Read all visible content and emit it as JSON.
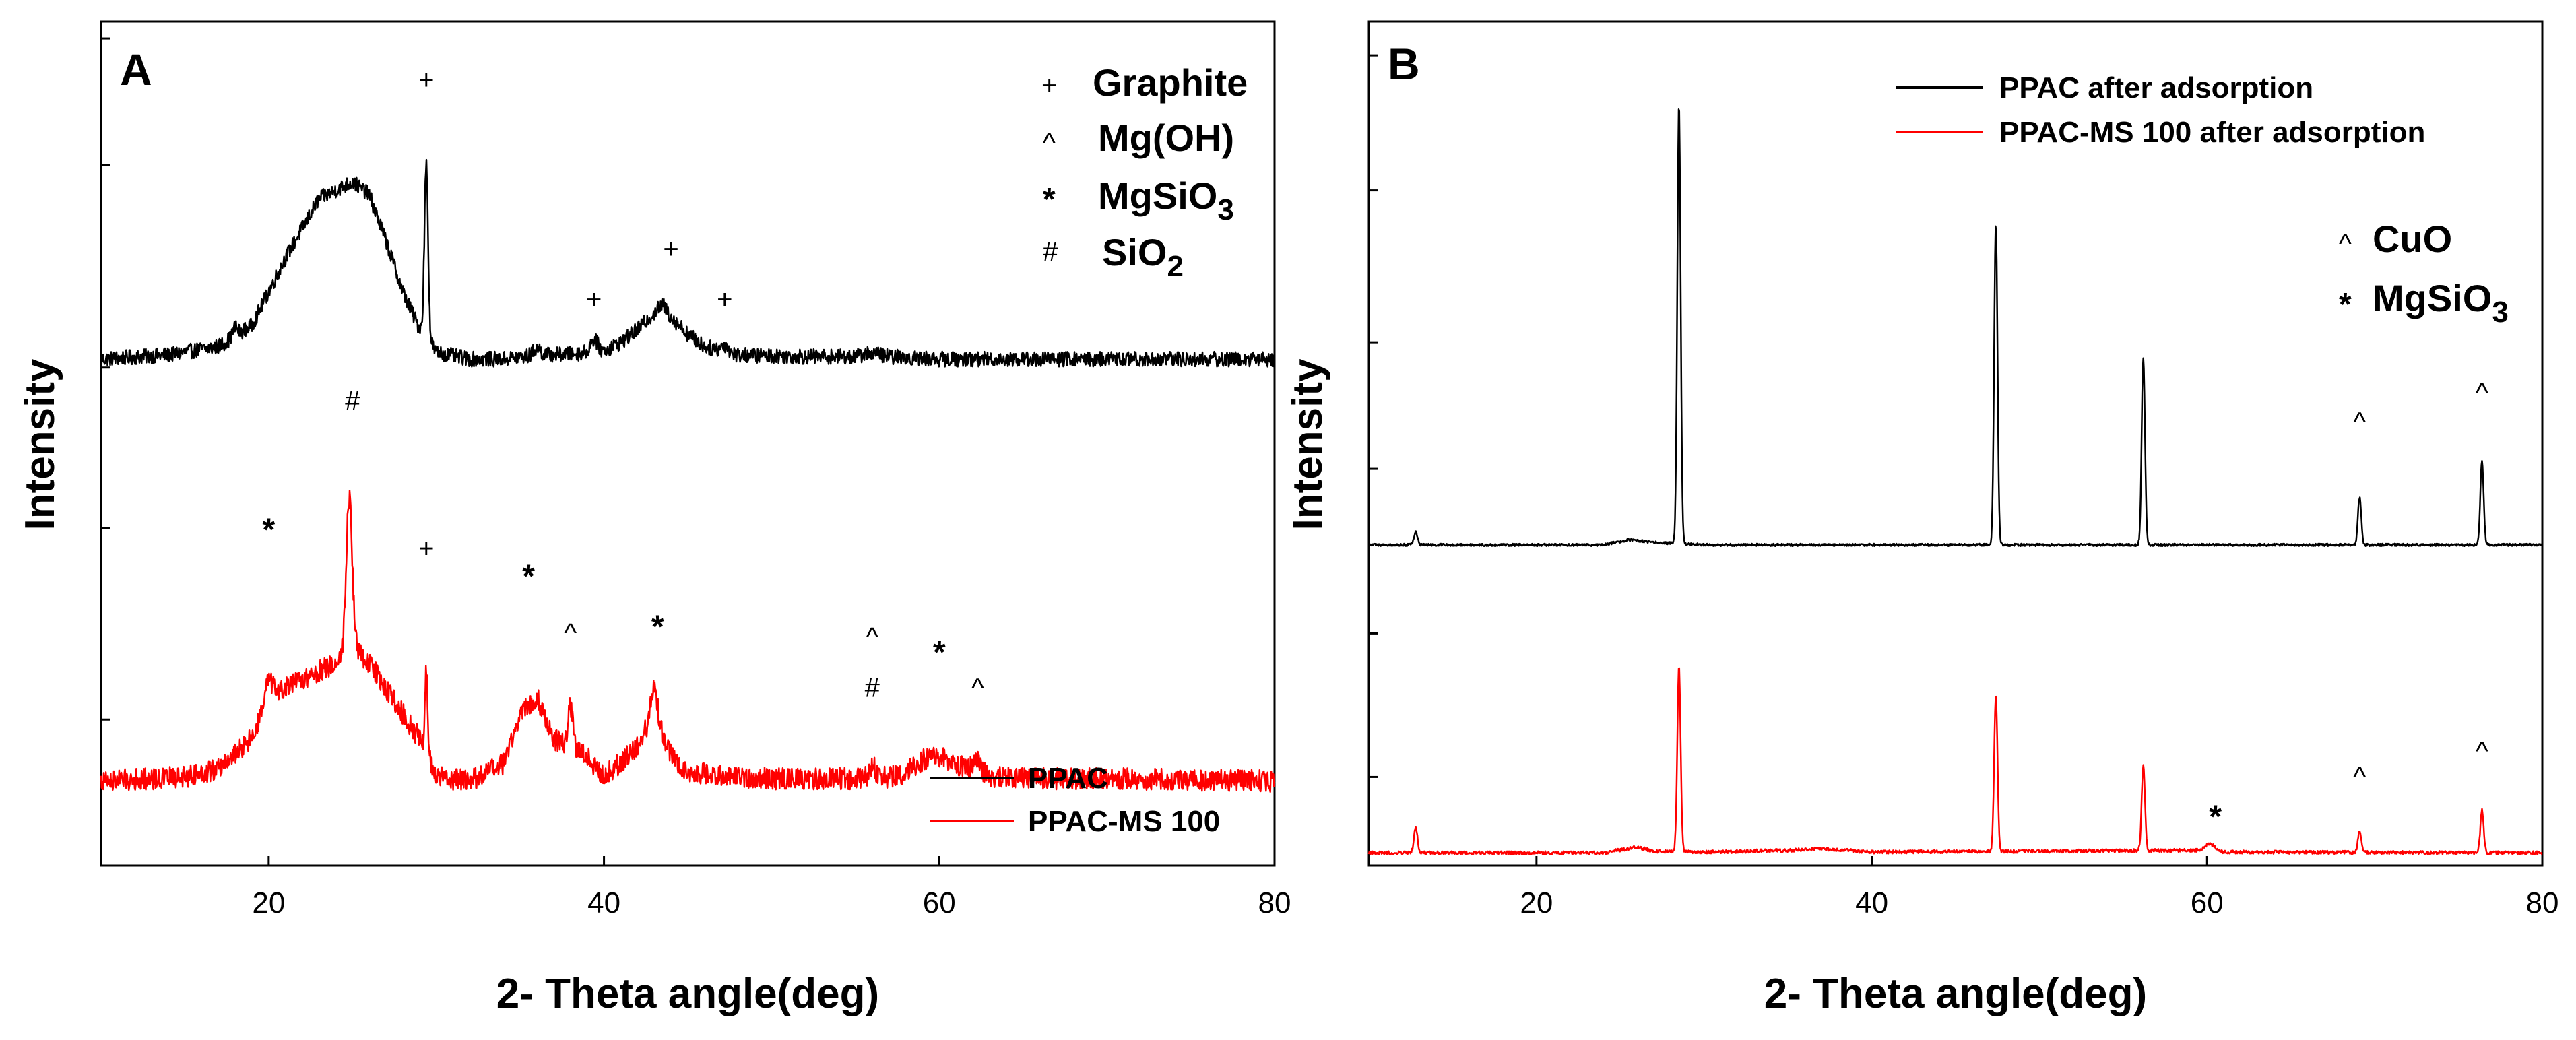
{
  "charts": [
    {
      "type": "line",
      "panel_label": "A",
      "xlabel": "2- Theta angle(deg)",
      "ylabel": "Intensity",
      "xlim": [
        10,
        80
      ],
      "xticks": [
        20,
        40,
        60,
        80
      ],
      "ylim": [
        0,
        100
      ],
      "legend": {
        "placement": "bottom-right",
        "entries": [
          {
            "name": "PPAC",
            "color": "#000000"
          },
          {
            "name": "PPAC-MS 100",
            "color": "#ff0000"
          }
        ]
      },
      "symbol_legend": [
        {
          "symbol": "+",
          "label": "Graphite"
        },
        {
          "symbol": "^",
          "label": "Mg(OH)"
        },
        {
          "symbol": "*",
          "label": "MgSiO",
          "subscript": "3"
        },
        {
          "symbol": "#",
          "label": "SiO",
          "subscript": "2"
        }
      ],
      "series": [
        {
          "name": "PPAC",
          "color": "#000000",
          "baseline": 60,
          "noise": 0.9,
          "points": [
            [
              10,
              60
            ],
            [
              14,
              60.5
            ],
            [
              17,
              61.5
            ],
            [
              19,
              64
            ],
            [
              21,
              72
            ],
            [
              23,
              79
            ],
            [
              25,
              81
            ],
            [
              26,
              79.5
            ],
            [
              27,
              74
            ],
            [
              28,
              68
            ],
            [
              28.9,
              64
            ],
            [
              29.3,
              63.5
            ],
            [
              30,
              60.8
            ],
            [
              32,
              60
            ],
            [
              34,
              60
            ],
            [
              36,
              60.5
            ],
            [
              38,
              60.6
            ],
            [
              40,
              61
            ],
            [
              41,
              62
            ],
            [
              42,
              63.5
            ],
            [
              43,
              65.5
            ],
            [
              43.5,
              66.5
            ],
            [
              44,
              65
            ],
            [
              45,
              63
            ],
            [
              46,
              61.5
            ],
            [
              48,
              60.5
            ],
            [
              52,
              60.3
            ],
            [
              55,
              60.3
            ],
            [
              56,
              60.8
            ],
            [
              57,
              60.3
            ],
            [
              60,
              60
            ],
            [
              70,
              60
            ],
            [
              80,
              60
            ]
          ],
          "peaks": [
            [
              29.4,
              20,
              0.15
            ],
            [
              39.4,
              1.5,
              0.3
            ],
            [
              47.2,
              0.8,
              0.3
            ],
            [
              18,
              1.0,
              0.2
            ],
            [
              36,
              0.8,
              0.3
            ]
          ]
        },
        {
          "name": "PPAC-MS 100",
          "color": "#ff0000",
          "baseline": 10,
          "noise": 1.3,
          "points": [
            [
              10,
              10
            ],
            [
              15,
              10.5
            ],
            [
              17,
              11.5
            ],
            [
              19,
              15
            ],
            [
              20,
              20
            ],
            [
              22,
              22
            ],
            [
              24,
              24
            ],
            [
              25,
              26
            ],
            [
              26,
              24
            ],
            [
              27,
              21
            ],
            [
              28,
              18
            ],
            [
              29,
              15
            ],
            [
              30,
              10.5
            ],
            [
              32,
              10
            ],
            [
              34,
              12
            ],
            [
              35,
              18
            ],
            [
              36,
              20
            ],
            [
              37,
              15
            ],
            [
              38,
              14
            ],
            [
              39,
              13
            ],
            [
              40,
              10.5
            ],
            [
              42,
              14
            ],
            [
              43,
              18
            ],
            [
              44,
              13
            ],
            [
              45,
              11
            ],
            [
              48,
              10.5
            ],
            [
              50,
              10.3
            ],
            [
              55,
              10.3
            ],
            [
              57,
              10.5
            ],
            [
              58,
              11
            ],
            [
              59,
              12.5
            ],
            [
              60,
              13
            ],
            [
              61,
              12
            ],
            [
              62,
              11.5
            ],
            [
              63,
              10.5
            ],
            [
              66,
              10.3
            ],
            [
              70,
              10.3
            ],
            [
              80,
              10
            ]
          ],
          "peaks": [
            [
              24.8,
              18,
              0.25
            ],
            [
              29.4,
              10,
              0.12
            ],
            [
              38,
              5,
              0.2
            ],
            [
              43,
              3,
              0.3
            ],
            [
              56,
              1.5,
              0.25
            ],
            [
              62.3,
              1.0,
              0.3
            ],
            [
              20,
              2,
              0.3
            ]
          ]
        }
      ],
      "annotations": [
        {
          "x": 29.4,
          "y": 92,
          "text": "+"
        },
        {
          "x": 39.4,
          "y": 66,
          "text": "+"
        },
        {
          "x": 44,
          "y": 72,
          "text": "+"
        },
        {
          "x": 47.2,
          "y": 66,
          "text": "+"
        },
        {
          "x": 25,
          "y": 54,
          "text": "#"
        },
        {
          "x": 20,
          "y": 38.5,
          "text": "*",
          "bold": true
        },
        {
          "x": 29.4,
          "y": 36.5,
          "text": "+"
        },
        {
          "x": 35.5,
          "y": 33,
          "text": "*",
          "bold": true
        },
        {
          "x": 38,
          "y": 26.5,
          "text": "^"
        },
        {
          "x": 43.2,
          "y": 27,
          "text": "*",
          "bold": true
        },
        {
          "x": 56,
          "y": 26,
          "text": "^"
        },
        {
          "x": 56,
          "y": 20,
          "text": "#"
        },
        {
          "x": 60,
          "y": 24,
          "text": "*",
          "bold": true
        },
        {
          "x": 62.3,
          "y": 20,
          "text": "^"
        }
      ]
    },
    {
      "type": "line",
      "panel_label": "B",
      "xlabel": "2- Theta angle(deg)",
      "ylabel": "Intensity",
      "xlim": [
        10,
        80
      ],
      "xticks": [
        20,
        40,
        60,
        80
      ],
      "ylim": [
        0,
        100
      ],
      "legend": {
        "placement": "top-center",
        "entries": [
          {
            "name": "PPAC after adsorption",
            "color": "#000000"
          },
          {
            "name": "PPAC-MS 100 after adsorption",
            "color": "#ff0000"
          }
        ]
      },
      "symbol_legend": [
        {
          "symbol": "^",
          "label": "CuO"
        },
        {
          "symbol": "*",
          "label": "MgSiO",
          "subscript": "3"
        }
      ],
      "series": [
        {
          "name": "PPAC after adsorption",
          "color": "#000000",
          "baseline": 38,
          "noise": 0.15,
          "points": [
            [
              10,
              38
            ],
            [
              24,
              38
            ],
            [
              25.5,
              38.6
            ],
            [
              27,
              38.3
            ],
            [
              30,
              38
            ],
            [
              80,
              38
            ]
          ],
          "peaks": [
            [
              12.8,
              1.5,
              0.15
            ],
            [
              28.5,
              52,
              0.14
            ],
            [
              47.4,
              38,
              0.14
            ],
            [
              56.2,
              22,
              0.14
            ],
            [
              69.1,
              5.6,
              0.14
            ],
            [
              76.4,
              10,
              0.14
            ]
          ]
        },
        {
          "name": "PPAC-MS 100 after adsorption",
          "color": "#ff0000",
          "baseline": 1.5,
          "noise": 0.2,
          "points": [
            [
              10,
              1.5
            ],
            [
              24,
              1.5
            ],
            [
              26,
              2.2
            ],
            [
              27,
              1.7
            ],
            [
              30,
              1.6
            ],
            [
              35,
              1.8
            ],
            [
              37,
              2
            ],
            [
              40,
              1.6
            ],
            [
              60,
              1.8
            ],
            [
              61,
              1.6
            ],
            [
              80,
              1.5
            ]
          ],
          "peaks": [
            [
              12.8,
              3.0,
              0.15
            ],
            [
              28.5,
              22,
              0.14
            ],
            [
              47.4,
              18.5,
              0.14
            ],
            [
              56.2,
              10,
              0.14
            ],
            [
              60.2,
              0.8,
              0.4
            ],
            [
              69.1,
              2.5,
              0.14
            ],
            [
              76.4,
              5,
              0.14
            ]
          ]
        }
      ],
      "annotations": [
        {
          "x": 69.1,
          "y": 51.5,
          "text": "^"
        },
        {
          "x": 76.4,
          "y": 55,
          "text": "^"
        },
        {
          "x": 69.1,
          "y": 9.5,
          "text": "^"
        },
        {
          "x": 76.4,
          "y": 12.5,
          "text": "^"
        },
        {
          "x": 60.5,
          "y": 4.5,
          "text": "*",
          "bold": true
        }
      ]
    }
  ]
}
